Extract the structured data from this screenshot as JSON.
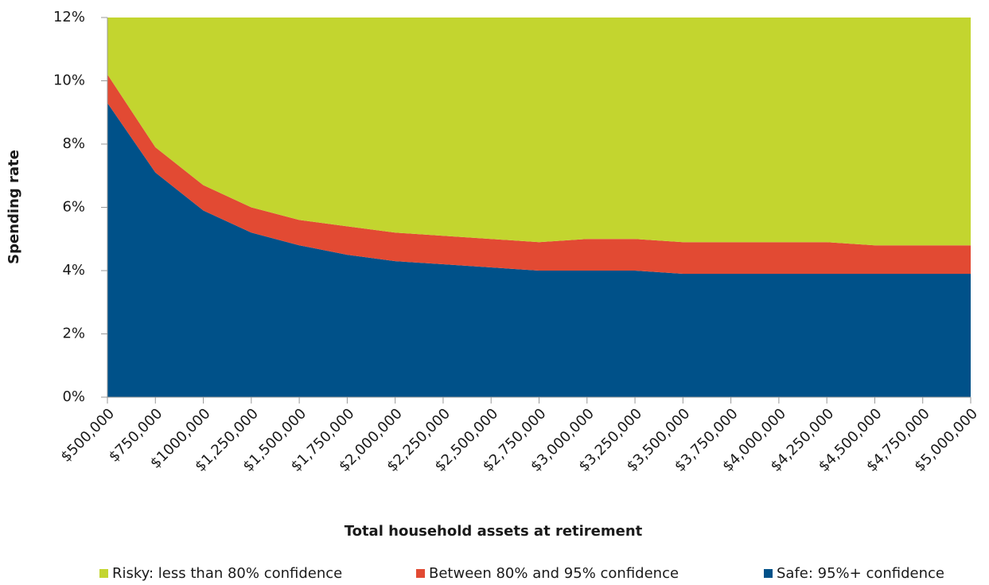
{
  "chart_data": {
    "type": "stacked-area",
    "x_label": "Total household assets at retirement",
    "y_label": "Spending rate",
    "categories": [
      "$500,000",
      "$750,000",
      "$1000,000",
      "$1,250,000",
      "$1,500,000",
      "$1,750,000",
      "$2,000,000",
      "$2,250,000",
      "$2,500,000",
      "$2,750,000",
      "$3,000,000",
      "$3,250,000",
      "$3,500,000",
      "$3,750,000",
      "$4,000,000",
      "$4,250,000",
      "$4,500,000",
      "$4,750,000",
      "$5,000,000"
    ],
    "series": [
      {
        "name": "Risky: less than 80% confidence",
        "color": "#c3d52f",
        "values": [
          1.8,
          4.1,
          5.3,
          6.0,
          6.4,
          6.6,
          6.8,
          6.9,
          7.0,
          7.1,
          7.0,
          7.0,
          7.1,
          7.1,
          7.1,
          7.1,
          7.2,
          7.2,
          7.2
        ]
      },
      {
        "name": "Between 80% and 95% confidence",
        "color": "#e24a33",
        "values": [
          0.9,
          0.8,
          0.8,
          0.8,
          0.8,
          0.9,
          0.9,
          0.9,
          0.9,
          0.9,
          1.0,
          1.0,
          1.0,
          1.0,
          1.0,
          1.0,
          0.9,
          0.9,
          0.9
        ]
      },
      {
        "name": "Safe: 95%+ confidence",
        "color": "#005189",
        "values": [
          9.3,
          7.1,
          5.9,
          5.2,
          4.8,
          4.5,
          4.3,
          4.2,
          4.1,
          4.0,
          4.0,
          4.0,
          3.9,
          3.9,
          3.9,
          3.9,
          3.9,
          3.9,
          3.9
        ]
      }
    ],
    "ylim": [
      0,
      12
    ],
    "yticks": [
      {
        "value": 0,
        "label": "0%"
      },
      {
        "value": 2,
        "label": "2%"
      },
      {
        "value": 4,
        "label": "4%"
      },
      {
        "value": 6,
        "label": "6%"
      },
      {
        "value": 8,
        "label": "8%"
      },
      {
        "value": 10,
        "label": "10%"
      },
      {
        "value": 12,
        "label": "12%"
      }
    ]
  }
}
